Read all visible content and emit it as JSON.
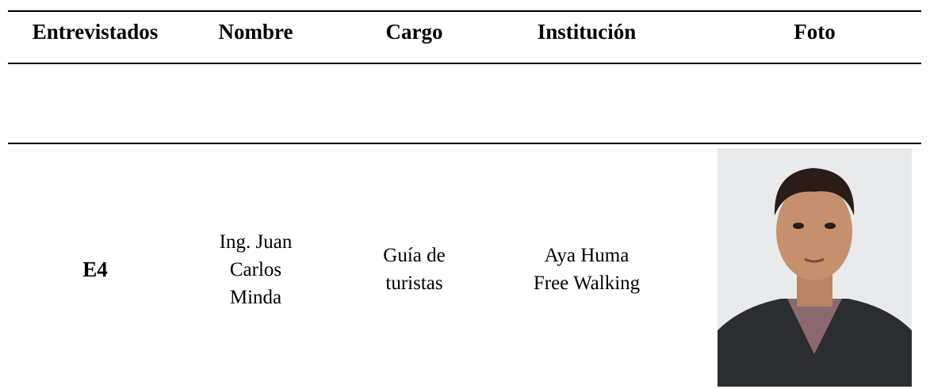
{
  "table": {
    "header": [
      "Entrevistados",
      "Nombre",
      "Cargo",
      "Institución",
      "Foto"
    ],
    "rows": [
      {
        "id": "E4",
        "nombre": [
          "Ing. Juan",
          "Carlos",
          "Minda"
        ],
        "cargo": [
          "Guía de",
          "turistas"
        ],
        "institucion": [
          "Aya Huma",
          "Free Walking"
        ]
      }
    ]
  }
}
